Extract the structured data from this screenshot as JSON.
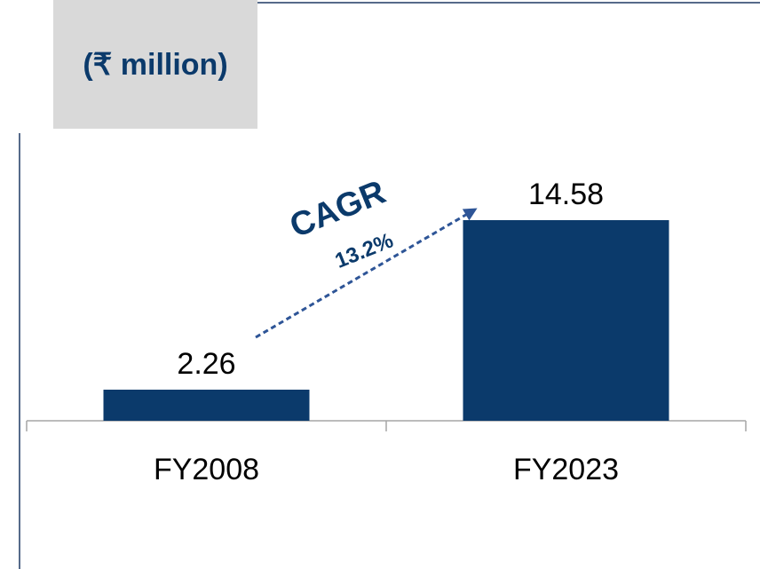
{
  "chart_data": {
    "type": "bar",
    "title": "(₹ million)",
    "categories": [
      "FY2008",
      "FY2023"
    ],
    "values": [
      2.26,
      14.58
    ],
    "color": "#0b3a6b",
    "annotations": [
      "CAGR",
      "13.2%"
    ]
  }
}
